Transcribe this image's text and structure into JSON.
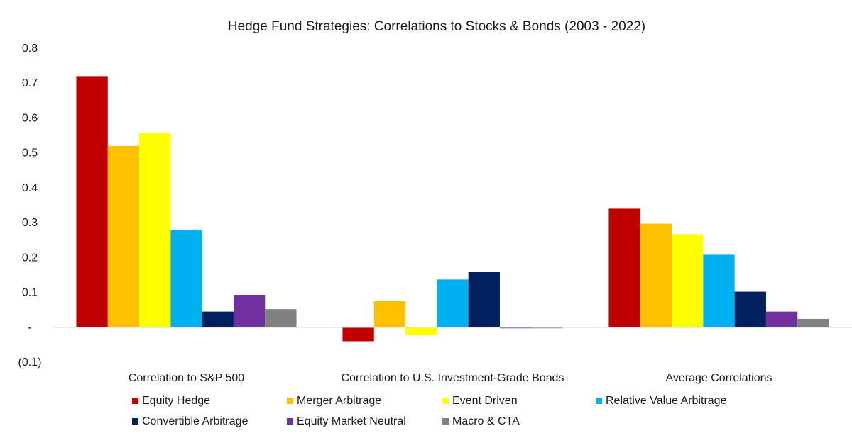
{
  "chart_data": {
    "type": "bar",
    "title": "Hedge Fund Strategies: Correlations to Stocks & Bonds (2003 - 2022)",
    "xlabel": "",
    "ylabel": "",
    "ylim": [
      -0.1,
      0.8
    ],
    "yticks": [
      0.8,
      0.7,
      0.6,
      0.5,
      0.4,
      0.3,
      0.2,
      0.1,
      0,
      -0.1
    ],
    "ytick_labels": [
      "0.8",
      "0.7",
      "0.6",
      "0.5",
      "0.4",
      "0.3",
      "0.2",
      "0.1",
      "-",
      "(0.1)"
    ],
    "categories": [
      "Correlation to S&P 500",
      "Correlation to U.S. Investment-Grade Bonds",
      "Average Correlations"
    ],
    "legend_position": "bottom",
    "grid": false,
    "series": [
      {
        "name": "Equity Hedge",
        "color": "#C00000",
        "values": [
          0.72,
          -0.04,
          0.34
        ]
      },
      {
        "name": "Merger Arbitrage",
        "color": "#FFC000",
        "values": [
          0.52,
          0.075,
          0.297
        ]
      },
      {
        "name": "Event Driven",
        "color": "#FFFF00",
        "values": [
          0.557,
          -0.023,
          0.267
        ]
      },
      {
        "name": "Relative Value Arbitrage",
        "color": "#00B0F0",
        "values": [
          0.28,
          0.137,
          0.208
        ]
      },
      {
        "name": "Convertible Arbitrage",
        "color": "#002060",
        "values": [
          0.045,
          0.158,
          0.102
        ]
      },
      {
        "name": "Equity Market Neutral",
        "color": "#7030A0",
        "values": [
          0.093,
          -0.003,
          0.045
        ]
      },
      {
        "name": "Macro & CTA",
        "color": "#808080",
        "values": [
          0.052,
          -0.003,
          0.024
        ]
      }
    ]
  }
}
